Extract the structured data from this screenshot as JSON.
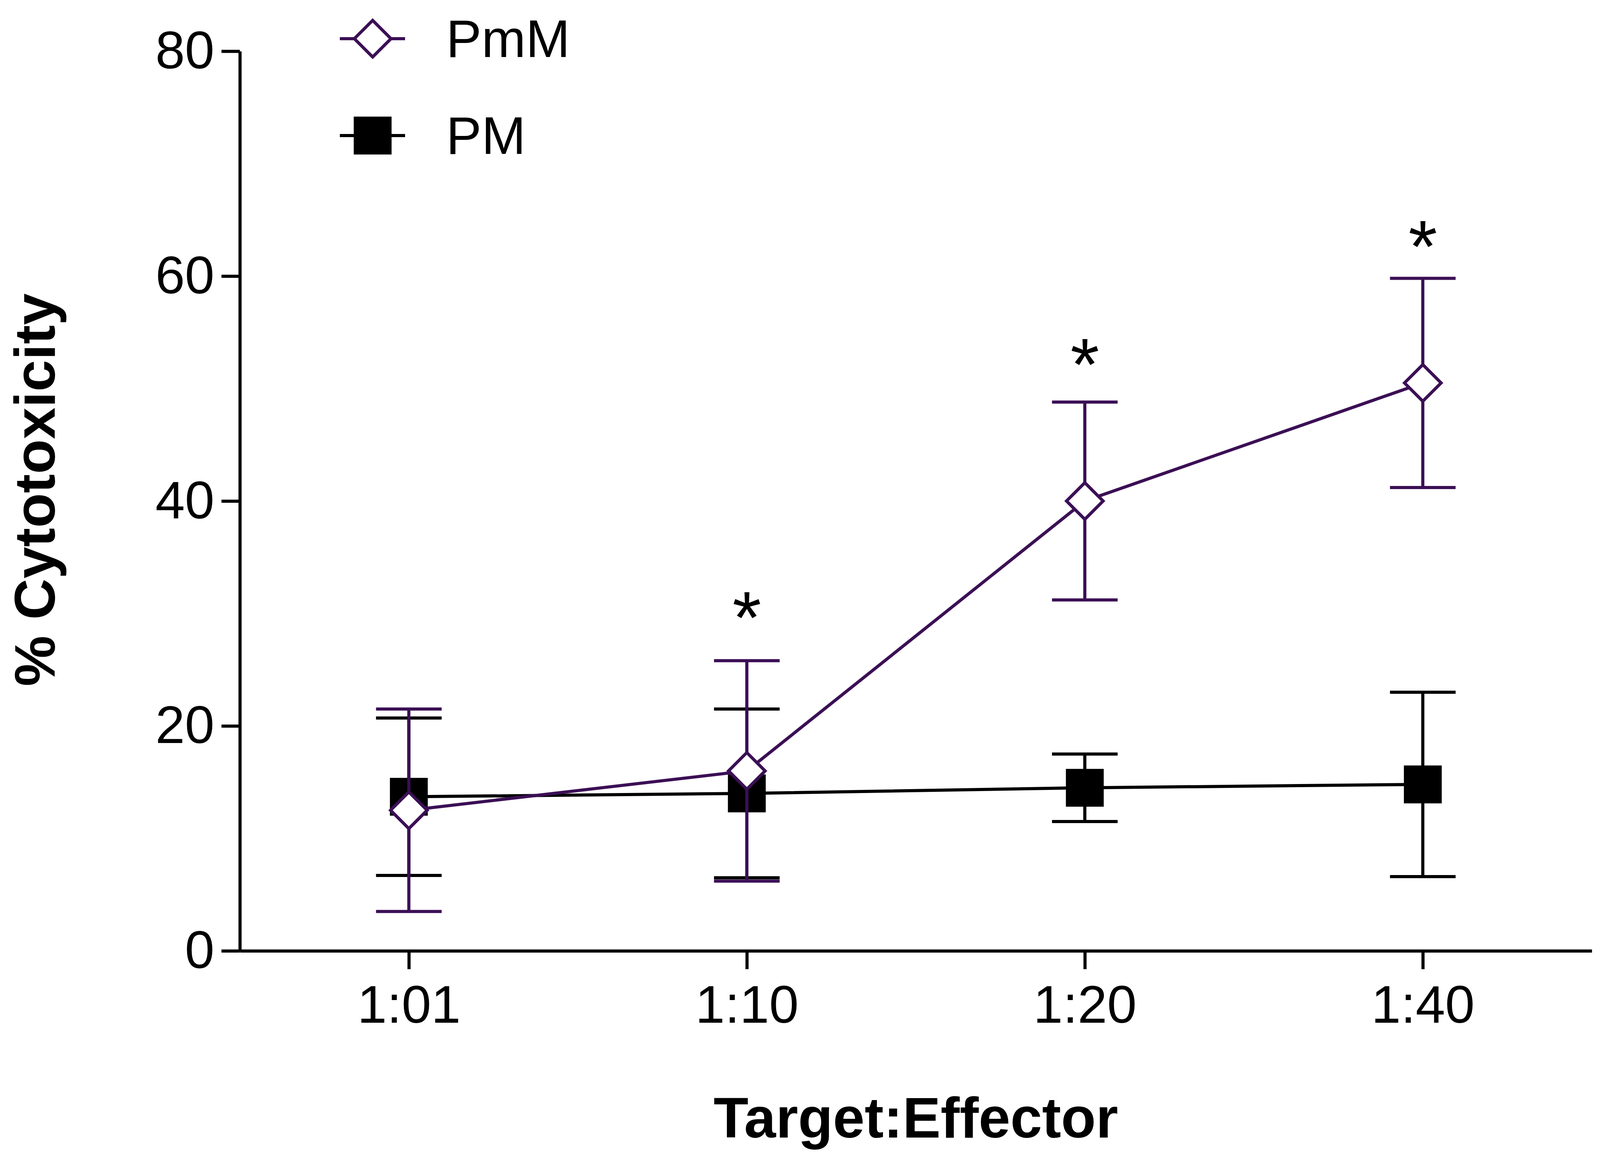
{
  "chart_data": {
    "type": "line",
    "x_label": "Target:Effector",
    "y_label": "% Cytotoxicity",
    "categories": [
      "1:01",
      "1:10",
      "1:20",
      "1:40"
    ],
    "series": [
      {
        "name": "PmM",
        "color": "#3b0f55",
        "marker": "open-diamond",
        "values": [
          12.5,
          16,
          40,
          50.5
        ],
        "errors": [
          9,
          9.8,
          8.8,
          9.3
        ]
      },
      {
        "name": "PM",
        "color": "#000000",
        "marker": "square",
        "values": [
          13.7,
          14,
          14.5,
          14.8
        ],
        "errors": [
          7,
          7.5,
          3,
          8.2
        ]
      }
    ],
    "ylim": [
      0,
      80
    ],
    "yticks": [
      0,
      20,
      40,
      60,
      80
    ],
    "legend": "upper left",
    "annotations": [
      {
        "text": "*",
        "x": "1:10",
        "y": 31
      },
      {
        "text": "*",
        "x": "1:20",
        "y": 53.5
      },
      {
        "text": "*",
        "x": "1:40",
        "y": 64
      }
    ]
  }
}
